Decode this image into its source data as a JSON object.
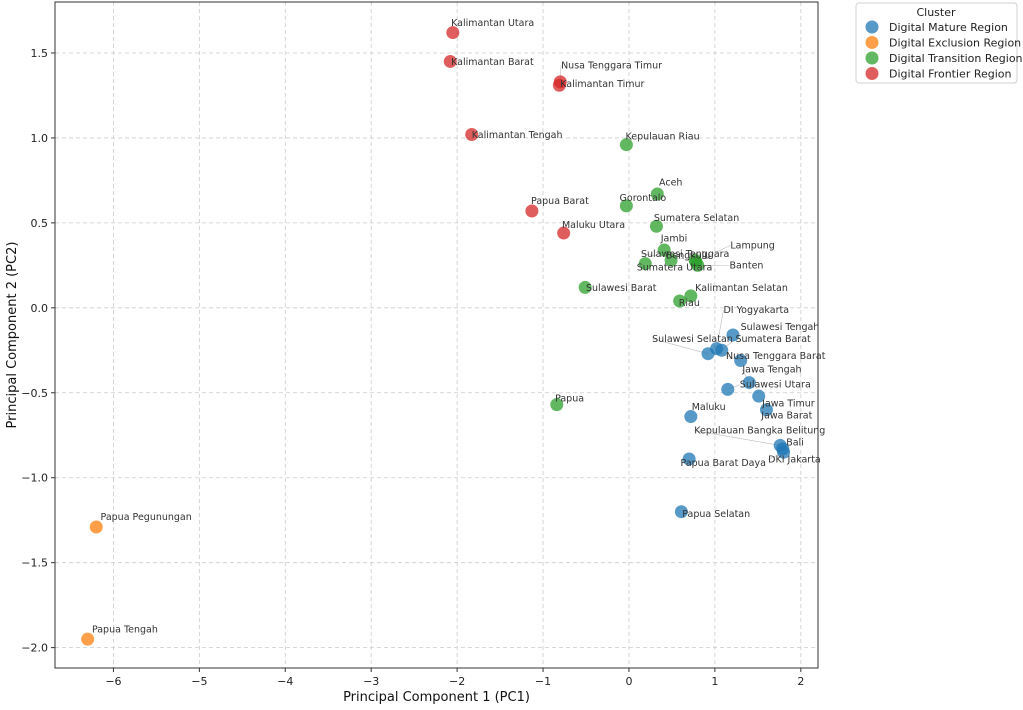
{
  "chart_data": {
    "type": "scatter",
    "title": "",
    "xlabel": "Principal Component 1 (PC1)",
    "ylabel": "Principal Component 2 (PC2)",
    "xlim": [
      -6.68,
      2.2
    ],
    "ylim": [
      -2.12,
      1.8
    ],
    "xticks": [
      -6,
      -5,
      -4,
      -3,
      -2,
      -1,
      0,
      1,
      2
    ],
    "yticks": [
      -2.0,
      -1.5,
      -1.0,
      -0.5,
      0.0,
      0.5,
      1.0,
      1.5
    ],
    "xtick_labels": [
      "−6",
      "−5",
      "−4",
      "−3",
      "−2",
      "−1",
      "0",
      "1",
      "2"
    ],
    "ytick_labels": [
      "−2.0",
      "−1.5",
      "−1.0",
      "−0.5",
      "0.0",
      "0.5",
      "1.0",
      "1.5"
    ],
    "grid": true,
    "legend": {
      "title": "Cluster",
      "placement": "outside-top-right",
      "entries": [
        {
          "name": "Digital Mature Region",
          "color": "#1f77b4"
        },
        {
          "name": "Digital Exclusion Region",
          "color": "#ff7f0e"
        },
        {
          "name": "Digital Transition Region",
          "color": "#2ca02c"
        },
        {
          "name": "Digital Frontier Region",
          "color": "#d62728"
        }
      ]
    },
    "series": [
      {
        "name": "Digital Mature Region",
        "color": "#1f77b4",
        "points": [
          {
            "label": "DI Yogyakarta",
            "x": 1.02,
            "y": -0.24,
            "lx": 1.1,
            "ly": -0.03
          },
          {
            "label": "Sulawesi Tengah",
            "x": 1.21,
            "y": -0.16,
            "lx": 1.3,
            "ly": -0.13
          },
          {
            "label": "Sumatera Barat",
            "x": 1.08,
            "y": -0.25,
            "lx": 1.24,
            "ly": -0.2
          },
          {
            "label": "Sulawesi Selatan",
            "x": 0.92,
            "y": -0.27,
            "lx": 0.27,
            "ly": -0.2
          },
          {
            "label": "Nusa Tenggara Barat",
            "x": 1.3,
            "y": -0.31,
            "lx": 1.13,
            "ly": -0.3
          },
          {
            "label": "Jawa Tengah",
            "x": 1.4,
            "y": -0.44,
            "lx": 1.32,
            "ly": -0.38
          },
          {
            "label": "Sulawesi Utara",
            "x": 1.15,
            "y": -0.48,
            "lx": 1.29,
            "ly": -0.47
          },
          {
            "label": "Jawa Timur",
            "x": 1.51,
            "y": -0.52,
            "lx": 1.55,
            "ly": -0.58
          },
          {
            "label": "Jawa Barat",
            "x": 1.6,
            "y": -0.6,
            "lx": 1.54,
            "ly": -0.65
          },
          {
            "label": "Maluku",
            "x": 0.72,
            "y": -0.64,
            "lx": 0.73,
            "ly": -0.6
          },
          {
            "label": "Kepulauan Bangka Belitung",
            "x": 1.76,
            "y": -0.81,
            "lx": 0.76,
            "ly": -0.74
          },
          {
            "label": "Bali",
            "x": 1.79,
            "y": -0.83,
            "lx": 1.83,
            "ly": -0.81
          },
          {
            "label": "DKI Jakarta",
            "x": 1.8,
            "y": -0.85,
            "lx": 1.62,
            "ly": -0.91
          },
          {
            "label": "Papua Barat Daya",
            "x": 0.7,
            "y": -0.89,
            "lx": 0.6,
            "ly": -0.93
          },
          {
            "label": "Papua Selatan",
            "x": 0.61,
            "y": -1.2,
            "lx": 0.62,
            "ly": -1.23
          }
        ]
      },
      {
        "name": "Digital Exclusion Region",
        "color": "#ff7f0e",
        "points": [
          {
            "label": "Papua Pegunungan",
            "x": -6.2,
            "y": -1.29,
            "lx": -6.15,
            "ly": -1.25
          },
          {
            "label": "Papua Tengah",
            "x": -6.3,
            "y": -1.95,
            "lx": -6.25,
            "ly": -1.91
          }
        ]
      },
      {
        "name": "Digital Transition Region",
        "color": "#2ca02c",
        "points": [
          {
            "label": "Kepulauan Riau",
            "x": -0.03,
            "y": 0.96,
            "lx": -0.04,
            "ly": 0.99
          },
          {
            "label": "Aceh",
            "x": 0.33,
            "y": 0.67,
            "lx": 0.35,
            "ly": 0.72
          },
          {
            "label": "Gorontalo",
            "x": -0.03,
            "y": 0.6,
            "lx": -0.11,
            "ly": 0.63
          },
          {
            "label": "Sumatera Selatan",
            "x": 0.32,
            "y": 0.48,
            "lx": 0.29,
            "ly": 0.51
          },
          {
            "label": "Jambi",
            "x": 0.41,
            "y": 0.34,
            "lx": 0.37,
            "ly": 0.39
          },
          {
            "label": "Sulawesi Tenggara",
            "x": 0.77,
            "y": 0.28,
            "lx": 0.14,
            "ly": 0.3
          },
          {
            "label": "Bengkulu",
            "x": 0.49,
            "y": 0.28,
            "lx": 0.43,
            "ly": 0.29
          },
          {
            "label": "Lampung",
            "x": 0.78,
            "y": 0.27,
            "lx": 1.18,
            "ly": 0.35
          },
          {
            "label": "Banten",
            "x": 0.8,
            "y": 0.25,
            "lx": 1.17,
            "ly": 0.23
          },
          {
            "label": "Sumatera Utara",
            "x": 0.19,
            "y": 0.26,
            "lx": 0.09,
            "ly": 0.22
          },
          {
            "label": "Sulawesi Barat",
            "x": -0.51,
            "y": 0.12,
            "lx": -0.5,
            "ly": 0.1
          },
          {
            "label": "Kalimantan Selatan",
            "x": 0.72,
            "y": 0.07,
            "lx": 0.77,
            "ly": 0.1
          },
          {
            "label": "Riau",
            "x": 0.59,
            "y": 0.04,
            "lx": 0.58,
            "ly": 0.01
          },
          {
            "label": "Papua",
            "x": -0.84,
            "y": -0.57,
            "lx": -0.86,
            "ly": -0.55
          }
        ]
      },
      {
        "name": "Digital Frontier Region",
        "color": "#d62728",
        "points": [
          {
            "label": "Kalimantan Utara",
            "x": -2.05,
            "y": 1.62,
            "lx": -2.07,
            "ly": 1.66
          },
          {
            "label": "Kalimantan Barat",
            "x": -2.08,
            "y": 1.45,
            "lx": -2.07,
            "ly": 1.43
          },
          {
            "label": "Nusa Tenggara Timur",
            "x": -0.8,
            "y": 1.33,
            "lx": -0.79,
            "ly": 1.41
          },
          {
            "label": "Kalimantan Timur",
            "x": -0.81,
            "y": 1.31,
            "lx": -0.8,
            "ly": 1.3
          },
          {
            "label": "Kalimantan Tengah",
            "x": -1.83,
            "y": 1.02,
            "lx": -1.83,
            "ly": 1.0
          },
          {
            "label": "Papua Barat",
            "x": -1.13,
            "y": 0.57,
            "lx": -1.14,
            "ly": 0.61
          },
          {
            "label": "Maluku Utara",
            "x": -0.76,
            "y": 0.44,
            "lx": -0.78,
            "ly": 0.47
          }
        ]
      }
    ]
  }
}
